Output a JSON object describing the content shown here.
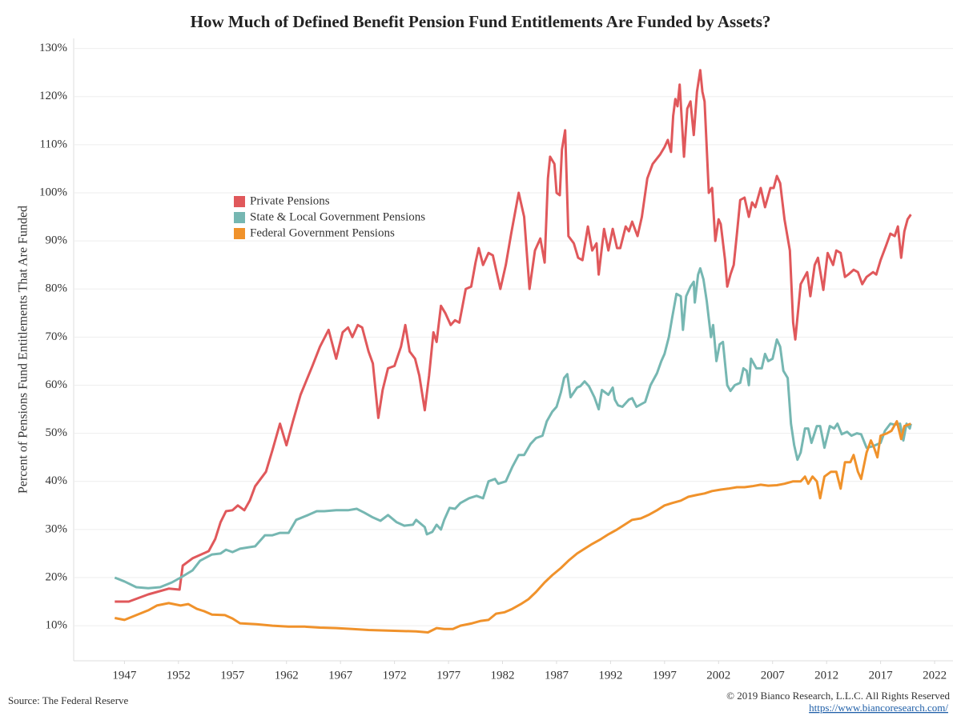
{
  "chart_data": {
    "type": "line",
    "title": "How Much of Defined Benefit Pension Fund Entitlements Are Funded by Assets?",
    "y_label": "Percent of Pensions Fund Entitlements That Are Funded",
    "source": "Source: The Federal Reserve",
    "copyright": "© 2019 Bianco Research, L.L.C. All Rights Reserved",
    "url": "https://www.biancoresearch.com/",
    "xlim": [
      1942.3,
      2023.7
    ],
    "xticks": [
      1947,
      1952,
      1957,
      1962,
      1967,
      1972,
      1977,
      1982,
      1987,
      1992,
      1997,
      2002,
      2007,
      2012,
      2017,
      2022
    ],
    "ylim": [
      2.7,
      132.1
    ],
    "yticks": [
      {
        "value": 10,
        "label": "10%"
      },
      {
        "value": 20,
        "label": "20%"
      },
      {
        "value": 30,
        "label": "30%"
      },
      {
        "value": 40,
        "label": "40%"
      },
      {
        "value": 50,
        "label": "50%"
      },
      {
        "value": 60,
        "label": "60%"
      },
      {
        "value": 70,
        "label": "70%"
      },
      {
        "value": 80,
        "label": "80%"
      },
      {
        "value": 90,
        "label": "90%"
      },
      {
        "value": 100,
        "label": "100%"
      },
      {
        "value": 110,
        "label": "110%"
      },
      {
        "value": 120,
        "label": "120%"
      },
      {
        "value": 130,
        "label": "130%"
      }
    ],
    "grid": true,
    "series": [
      {
        "name": "Private Pensions",
        "color": "#e0585b",
        "x": [
          1946.1,
          1947.4,
          1949.2,
          1951.1,
          1952.1,
          1952.4,
          1953.3,
          1954.8,
          1955.4,
          1955.9,
          1956.4,
          1957.0,
          1957.5,
          1958.1,
          1958.6,
          1959.1,
          1959.6,
          1960.1,
          1960.7,
          1961.4,
          1962.0,
          1962.6,
          1963.3,
          1964.4,
          1965.1,
          1965.9,
          1966.6,
          1967.2,
          1967.7,
          1968.1,
          1968.6,
          1969.0,
          1969.6,
          1970.0,
          1970.5,
          1970.9,
          1971.4,
          1972.0,
          1972.6,
          1973.0,
          1973.4,
          1973.9,
          1974.3,
          1974.8,
          1975.2,
          1975.6,
          1975.9,
          1976.3,
          1976.7,
          1977.2,
          1977.6,
          1978.0,
          1978.6,
          1979.1,
          1979.5,
          1979.8,
          1980.2,
          1980.7,
          1981.1,
          1981.4,
          1981.8,
          1982.3,
          1982.8,
          1983.5,
          1984.0,
          1984.5,
          1985.0,
          1985.5,
          1985.9,
          1986.2,
          1986.4,
          1986.8,
          1987.0,
          1987.3,
          1987.5,
          1987.8,
          1988.1,
          1988.6,
          1989.0,
          1989.4,
          1989.9,
          1990.3,
          1990.7,
          1990.9,
          1991.4,
          1991.8,
          1992.2,
          1992.6,
          1992.9,
          1993.4,
          1993.7,
          1994.0,
          1994.5,
          1994.9,
          1995.4,
          1995.9,
          1996.6,
          1997.0,
          1997.3,
          1997.6,
          1997.8,
          1998.0,
          1998.2,
          1998.4,
          1998.8,
          1999.1,
          1999.4,
          1999.7,
          2000.0,
          2000.3,
          2000.5,
          2000.7,
          2001.1,
          2001.4,
          2001.7,
          2002.0,
          2002.2,
          2002.6,
          2002.8,
          2003.1,
          2003.4,
          2003.7,
          2004.0,
          2004.4,
          2004.8,
          2005.1,
          2005.4,
          2005.9,
          2006.3,
          2006.8,
          2007.1,
          2007.4,
          2007.7,
          2008.1,
          2008.6,
          2008.9,
          2009.1,
          2009.6,
          2010.2,
          2010.5,
          2010.9,
          2011.2,
          2011.7,
          2012.1,
          2012.6,
          2012.9,
          2013.3,
          2013.7,
          2014.0,
          2014.5,
          2014.9,
          2015.3,
          2015.7,
          2016.3,
          2016.6,
          2017.0,
          2017.5,
          2017.9,
          2018.3,
          2018.6,
          2018.9,
          2019.2,
          2019.5,
          2019.8
        ],
        "values": [
          15,
          15,
          16.5,
          17.7,
          17.5,
          22.5,
          24,
          25.5,
          28,
          31.5,
          33.8,
          34,
          35,
          34,
          36,
          39,
          40.5,
          42,
          46.5,
          52,
          47.5,
          52.5,
          58,
          64,
          68,
          71.5,
          65.5,
          71,
          72,
          70,
          72.5,
          72,
          67,
          64.5,
          53.2,
          59,
          63.5,
          64,
          68,
          72.5,
          67,
          65.5,
          62,
          54.8,
          62,
          71,
          69,
          76.5,
          75,
          72.5,
          73.5,
          73,
          80,
          80.5,
          85.5,
          88.5,
          85,
          87.5,
          87,
          84,
          80,
          85,
          91.5,
          100,
          95,
          80,
          88,
          90.5,
          85.5,
          103,
          107.5,
          106,
          100,
          99.5,
          109,
          113,
          91,
          89.5,
          86.5,
          86,
          93,
          88,
          89.5,
          83,
          92.5,
          88,
          92.5,
          88.5,
          88.5,
          93,
          92,
          94,
          91,
          95,
          103,
          106,
          108,
          109.5,
          111,
          108.5,
          116,
          119.5,
          118,
          122.5,
          107.5,
          117.5,
          119,
          112,
          121,
          125.5,
          121,
          119,
          100,
          101,
          90,
          94.5,
          93.5,
          86,
          80.5,
          83,
          85,
          91.5,
          98.5,
          99,
          95,
          98,
          97,
          101,
          97,
          101,
          101,
          103.5,
          102,
          94.5,
          88,
          73,
          69.5,
          81,
          83.5,
          78.5,
          85,
          86.5,
          79.8,
          87.5,
          85,
          88,
          87.5,
          82.5,
          83,
          84,
          83.5,
          81,
          82.5,
          83.5,
          83,
          86,
          89,
          91.5,
          91,
          93,
          86.5,
          92,
          94.5,
          95.5
        ]
      },
      {
        "name": "State & Local Government Pensions",
        "color": "#76b7b2",
        "x": [
          1946.1,
          1947.0,
          1948.1,
          1949.2,
          1950.3,
          1951.4,
          1952.2,
          1953.3,
          1954.0,
          1955.1,
          1955.9,
          1956.4,
          1957.0,
          1957.7,
          1958.5,
          1959.1,
          1960.0,
          1960.7,
          1961.4,
          1962.2,
          1962.9,
          1964.0,
          1964.8,
          1965.5,
          1966.6,
          1967.7,
          1968.5,
          1969.2,
          1970.0,
          1970.7,
          1971.4,
          1972.2,
          1972.9,
          1973.7,
          1974.0,
          1974.8,
          1975.0,
          1975.5,
          1975.9,
          1976.3,
          1976.6,
          1977.1,
          1977.6,
          1978.1,
          1978.9,
          1979.6,
          1980.2,
          1980.7,
          1981.3,
          1981.6,
          1982.3,
          1982.9,
          1983.5,
          1984.0,
          1984.6,
          1985.1,
          1985.7,
          1986.1,
          1986.6,
          1987.0,
          1987.4,
          1987.7,
          1988.0,
          1988.3,
          1988.9,
          1989.2,
          1989.6,
          1990.0,
          1990.5,
          1990.9,
          1991.2,
          1991.8,
          1992.2,
          1992.4,
          1992.7,
          1993.1,
          1993.7,
          1994.0,
          1994.4,
          1994.8,
          1995.2,
          1995.7,
          1996.3,
          1996.7,
          1997.0,
          1997.4,
          1997.7,
          1998.1,
          1998.5,
          1998.7,
          1999.0,
          1999.4,
          1999.7,
          1999.8,
          2000.1,
          2000.3,
          2000.6,
          2000.9,
          2001.3,
          2001.5,
          2001.8,
          2002.1,
          2002.4,
          2002.8,
          2003.1,
          2003.5,
          2004.0,
          2004.3,
          2004.6,
          2004.8,
          2005.0,
          2005.5,
          2006.0,
          2006.3,
          2006.6,
          2007.0,
          2007.4,
          2007.7,
          2008.0,
          2008.4,
          2008.7,
          2009.0,
          2009.3,
          2009.6,
          2010.0,
          2010.3,
          2010.6,
          2011.1,
          2011.4,
          2011.8,
          2012.3,
          2012.7,
          2013.0,
          2013.4,
          2013.9,
          2014.3,
          2014.8,
          2015.2,
          2015.7,
          2016.3,
          2017.0,
          2017.4,
          2017.9,
          2018.3,
          2018.8,
          2019.1,
          2019.4,
          2019.7,
          2019.8
        ],
        "values": [
          20,
          19.2,
          18,
          17.8,
          18,
          19,
          20,
          21.5,
          23.5,
          24.8,
          25,
          25.8,
          25.3,
          26,
          26.3,
          26.5,
          28.8,
          28.8,
          29.3,
          29.3,
          32,
          33,
          33.8,
          33.8,
          34,
          34,
          34.3,
          33.5,
          32.5,
          31.8,
          33,
          31.5,
          30.8,
          31,
          32,
          30.5,
          29,
          29.5,
          31,
          30,
          32,
          34.5,
          34.3,
          35.5,
          36.5,
          37,
          36.5,
          40,
          40.5,
          39.5,
          40,
          43,
          45.5,
          45.5,
          47.8,
          49,
          49.5,
          52.5,
          54.5,
          55.5,
          58.5,
          61.5,
          62.3,
          57.5,
          59.5,
          59.8,
          60.8,
          59.8,
          57.5,
          55,
          59,
          58,
          59.5,
          57,
          55.8,
          55.5,
          57,
          57.3,
          55.5,
          56,
          56.5,
          60,
          62.5,
          65,
          66.5,
          70,
          74,
          79,
          78.5,
          71.5,
          78.5,
          80.5,
          81.5,
          77.2,
          83,
          84.3,
          82,
          77.5,
          70,
          72.5,
          65,
          68.5,
          69,
          60,
          58.8,
          60,
          60.5,
          63.5,
          63,
          60,
          65.5,
          63.5,
          63.5,
          66.5,
          65,
          65.5,
          69.5,
          68,
          63,
          61.5,
          52,
          47.5,
          44.5,
          46,
          51,
          51,
          48,
          51.5,
          51.5,
          47,
          51.5,
          51,
          52,
          49.8,
          50.3,
          49.5,
          50,
          49.8,
          47,
          47.3,
          48,
          50.5,
          52,
          51.8,
          52,
          48.5,
          52,
          51,
          52
        ]
      },
      {
        "name": "Federal Government Pensions",
        "color": "#f0922b",
        "x": [
          1946.1,
          1947.0,
          1948.1,
          1949.2,
          1950.0,
          1951.1,
          1952.2,
          1952.9,
          1953.7,
          1954.4,
          1955.1,
          1956.3,
          1957.0,
          1957.7,
          1959.2,
          1960.7,
          1962.2,
          1963.7,
          1965.1,
          1966.6,
          1968.1,
          1969.6,
          1971.1,
          1972.6,
          1974.0,
          1975.1,
          1975.9,
          1976.6,
          1977.4,
          1978.1,
          1979.2,
          1980.0,
          1980.7,
          1981.4,
          1982.2,
          1982.9,
          1983.7,
          1984.4,
          1985.1,
          1985.9,
          1986.6,
          1987.4,
          1988.1,
          1988.9,
          1989.6,
          1990.3,
          1991.1,
          1991.8,
          1992.6,
          1993.3,
          1994.0,
          1994.8,
          1995.5,
          1996.3,
          1997.0,
          1997.7,
          1998.5,
          1999.2,
          2000.0,
          2000.7,
          2001.4,
          2002.2,
          2002.9,
          2003.7,
          2004.4,
          2005.1,
          2005.9,
          2006.6,
          2007.4,
          2008.1,
          2008.9,
          2009.6,
          2010.0,
          2010.3,
          2010.7,
          2011.1,
          2011.4,
          2011.8,
          2012.4,
          2012.9,
          2013.3,
          2013.7,
          2014.2,
          2014.5,
          2014.9,
          2015.2,
          2015.7,
          2016.1,
          2016.4,
          2016.7,
          2017.0,
          2017.6,
          2018.0,
          2018.5,
          2018.9,
          2019.2,
          2019.8
        ],
        "values": [
          11.6,
          11.2,
          12.2,
          13.2,
          14.2,
          14.7,
          14.2,
          14.5,
          13.5,
          13,
          12.3,
          12.2,
          11.5,
          10.5,
          10.3,
          10,
          9.8,
          9.8,
          9.6,
          9.5,
          9.3,
          9.1,
          9,
          8.9,
          8.8,
          8.6,
          9.5,
          9.3,
          9.3,
          10,
          10.5,
          11,
          11.2,
          12.5,
          12.8,
          13.5,
          14.5,
          15.5,
          17,
          19,
          20.5,
          22,
          23.5,
          25,
          26,
          27,
          28,
          29,
          30,
          31,
          32,
          32.3,
          33,
          34,
          35,
          35.5,
          36,
          36.8,
          37.2,
          37.5,
          38,
          38.3,
          38.5,
          38.8,
          38.8,
          39,
          39.3,
          39.1,
          39.2,
          39.5,
          40,
          40,
          41,
          39.5,
          41,
          40,
          36.5,
          41,
          42,
          42,
          38.5,
          44,
          44,
          45.5,
          42,
          40.5,
          46,
          48.5,
          47,
          45,
          49.5,
          50,
          50.5,
          52.5,
          48.8,
          51.5,
          52
        ]
      }
    ]
  }
}
